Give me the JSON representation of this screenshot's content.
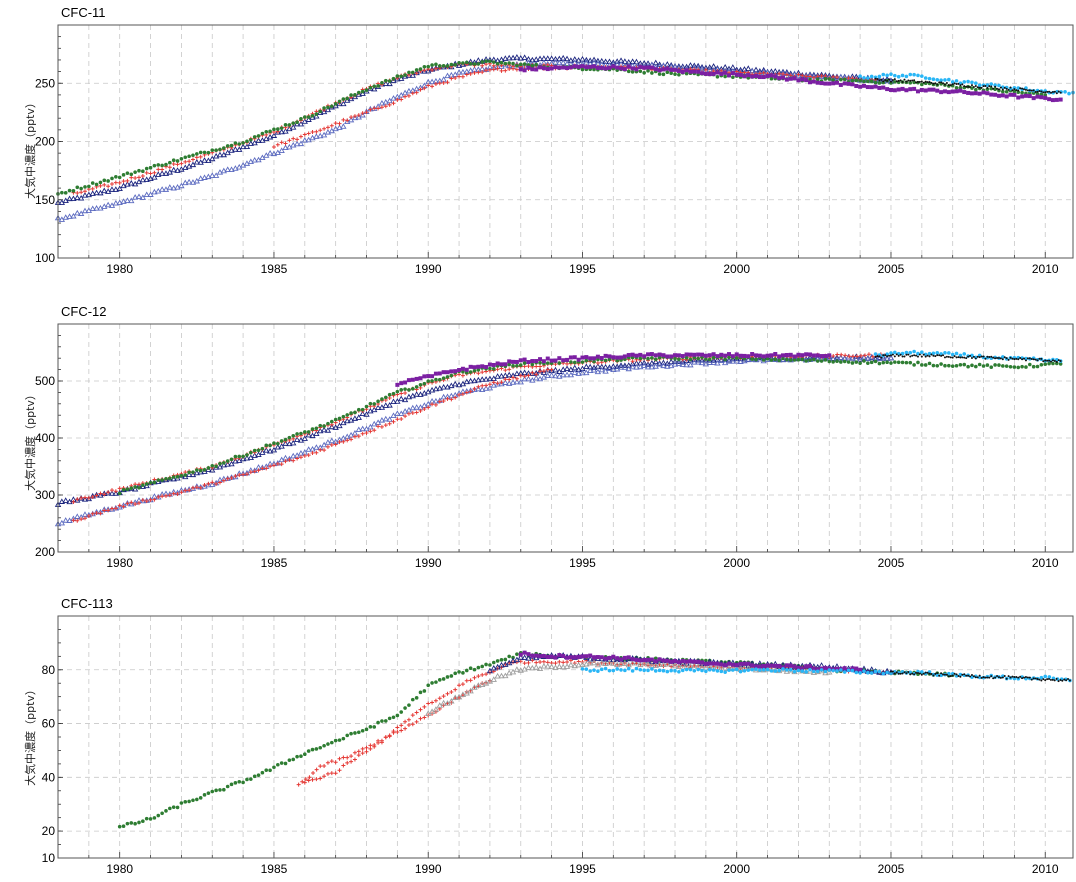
{
  "y_axis_label": "大気中濃度（pptv）",
  "chart_data": [
    {
      "type": "scatter",
      "title": "CFC-11",
      "ylabel": "大気中濃度（pptv）",
      "xlim": [
        1978,
        2010.9
      ],
      "ylim": [
        100,
        300
      ],
      "yticks": [
        100,
        150,
        200,
        250
      ],
      "xticks": [
        1980,
        1985,
        1990,
        1995,
        2000,
        2005,
        2010
      ],
      "grid": true,
      "series": [
        {
          "color": "#1a237e",
          "marker": "triangle",
          "x": [
            1978,
            1980,
            1983,
            1985,
            1987,
            1988,
            1989,
            1990,
            1991,
            1992,
            1993,
            1995,
            1997,
            2000,
            2003,
            2005
          ],
          "y": [
            147,
            160,
            185,
            205,
            230,
            243,
            253,
            261,
            266,
            270,
            271,
            270,
            267,
            262,
            256,
            252
          ]
        },
        {
          "color": "#5c6bc0",
          "marker": "triangle",
          "x": [
            1978,
            1980,
            1983,
            1985,
            1987,
            1988,
            1989,
            1990,
            1991,
            1992,
            1993,
            1995,
            1997,
            2000,
            2003,
            2005
          ],
          "y": [
            133,
            147,
            170,
            190,
            210,
            225,
            238,
            250,
            258,
            263,
            266,
            267,
            265,
            260,
            255,
            251
          ]
        },
        {
          "color": "#e53935",
          "marker": "cross",
          "x": [
            1978.5,
            1980,
            1983,
            1985,
            1987,
            1988,
            1989,
            1990,
            1991,
            1992,
            1993,
            1995,
            1997,
            2000,
            2003,
            2004.5
          ],
          "y": [
            155,
            165,
            190,
            208,
            233,
            245,
            255,
            262,
            266,
            266,
            265,
            264,
            263,
            259,
            255,
            253
          ]
        },
        {
          "color": "#e53935",
          "marker": "cross",
          "x": [
            1985,
            1986,
            1987,
            1988,
            1989,
            1990,
            1991,
            1992,
            1993,
            1995,
            1997
          ],
          "y": [
            196,
            205,
            215,
            225,
            235,
            247,
            255,
            261,
            263,
            264,
            263
          ]
        },
        {
          "color": "#2e7d32",
          "marker": "circle",
          "x": [
            1978,
            1980,
            1982,
            1984,
            1986,
            1988,
            1990,
            1992,
            1994,
            1996,
            1998,
            2000,
            2002,
            2004,
            2006,
            2008,
            2010
          ],
          "y": [
            155,
            170,
            185,
            200,
            220,
            245,
            265,
            268,
            264,
            262,
            258,
            256,
            253,
            252,
            250,
            245,
            240
          ]
        },
        {
          "color": "#7b1fa2",
          "marker": "square",
          "x": [
            1993,
            1995,
            1997,
            1999,
            2001,
            2003,
            2005,
            2007,
            2009,
            2010.5
          ],
          "y": [
            262,
            264,
            263,
            259,
            256,
            250,
            245,
            243,
            239,
            236
          ]
        },
        {
          "color": "#29b6f6",
          "marker": "circle",
          "x": [
            2004,
            2005,
            2006,
            2007,
            2008,
            2009,
            2010,
            2010.9
          ],
          "y": [
            255,
            257,
            256,
            252,
            249,
            246,
            243,
            242
          ]
        },
        {
          "color": "#111111",
          "marker": "point",
          "x": [
            2004.5,
            2005.5,
            2006.5,
            2007.5,
            2008.5,
            2009.5,
            2010.5
          ],
          "y": [
            253,
            252,
            250,
            248,
            246,
            244,
            242
          ]
        }
      ]
    },
    {
      "type": "scatter",
      "title": "CFC-12",
      "ylabel": "大気中濃度（pptv）",
      "xlim": [
        1978,
        2010.9
      ],
      "ylim": [
        200,
        600
      ],
      "yticks": [
        200,
        300,
        400,
        500
      ],
      "xticks": [
        1980,
        1985,
        1990,
        1995,
        2000,
        2005,
        2010
      ],
      "grid": true,
      "series": [
        {
          "color": "#1a237e",
          "marker": "triangle",
          "x": [
            1978,
            1980,
            1983,
            1985,
            1987,
            1989,
            1990,
            1991,
            1993,
            1995,
            1997,
            2000,
            2003,
            2005
          ],
          "y": [
            285,
            305,
            345,
            380,
            420,
            465,
            480,
            495,
            512,
            522,
            530,
            538,
            540,
            540
          ]
        },
        {
          "color": "#5c6bc0",
          "marker": "triangle",
          "x": [
            1978,
            1980,
            1983,
            1985,
            1987,
            1989,
            1990,
            1991,
            1993,
            1995,
            1997,
            2000,
            2003,
            2005
          ],
          "y": [
            250,
            280,
            320,
            355,
            395,
            440,
            460,
            478,
            500,
            515,
            525,
            535,
            539,
            540
          ]
        },
        {
          "color": "#e53935",
          "marker": "cross",
          "x": [
            1978.5,
            1980,
            1983,
            1985,
            1987,
            1989,
            1990,
            1991,
            1993,
            1995,
            1997,
            2000,
            2003,
            2004.8
          ],
          "y": [
            290,
            310,
            350,
            388,
            428,
            475,
            495,
            510,
            525,
            532,
            538,
            542,
            544,
            545
          ]
        },
        {
          "color": "#e53935",
          "marker": "cross",
          "x": [
            1978.5,
            1980,
            1982,
            1984,
            1986,
            1988,
            1990,
            1992,
            1994
          ],
          "y": [
            255,
            280,
            305,
            335,
            368,
            410,
            455,
            495,
            520
          ]
        },
        {
          "color": "#2e7d32",
          "marker": "circle",
          "x": [
            1980,
            1983,
            1985,
            1987,
            1989,
            1991,
            1993,
            1995,
            1997,
            2000,
            2003,
            2005,
            2007,
            2009,
            2010.5
          ],
          "y": [
            305,
            350,
            390,
            430,
            480,
            515,
            530,
            535,
            540,
            540,
            535,
            532,
            528,
            525,
            530
          ]
        },
        {
          "color": "#7b1fa2",
          "marker": "square",
          "x": [
            1989,
            1991,
            1993,
            1995,
            1997,
            1999,
            2001,
            2003
          ],
          "y": [
            495,
            520,
            535,
            540,
            545,
            545,
            545,
            545
          ]
        },
        {
          "color": "#29b6f6",
          "marker": "circle",
          "x": [
            2004.5,
            2005.5,
            2006.5,
            2007.5,
            2008.5,
            2009.5,
            2010.5
          ],
          "y": [
            545,
            550,
            548,
            545,
            540,
            538,
            535
          ]
        },
        {
          "color": "#111111",
          "marker": "point",
          "x": [
            2004.5,
            2005.5,
            2006.5,
            2007.5,
            2008.5,
            2009.5,
            2010.5
          ],
          "y": [
            543,
            545,
            544,
            542,
            540,
            538,
            535
          ]
        }
      ]
    },
    {
      "type": "scatter",
      "title": "CFC-113",
      "ylabel": "大気中濃度（pptv）",
      "xlim": [
        1978,
        2010.9
      ],
      "ylim": [
        10,
        100
      ],
      "yticks": [
        10,
        20,
        40,
        60,
        80
      ],
      "xticks": [
        1980,
        1985,
        1990,
        1995,
        2000,
        2005,
        2010
      ],
      "grid": true,
      "series": [
        {
          "color": "#2e7d32",
          "marker": "circle",
          "x": [
            1980,
            1981,
            1982,
            1984,
            1985,
            1986,
            1988,
            1989,
            1990,
            1991,
            1992,
            1993,
            1994,
            1995,
            1997,
            1999,
            2001,
            2003,
            2005,
            2007
          ],
          "y": [
            21.5,
            24.5,
            30,
            38.5,
            43.5,
            49,
            58,
            63,
            74,
            79,
            82,
            86,
            85,
            85,
            84,
            83,
            82,
            80,
            79,
            78
          ]
        },
        {
          "color": "#e53935",
          "marker": "cross",
          "x": [
            1985.8,
            1986.5,
            1987,
            1987.5,
            1988,
            1988.5,
            1989,
            1989.5,
            1990,
            1990.5,
            1991,
            1991.5,
            1992,
            1992.5,
            1993,
            1994,
            1995,
            1997,
            2000,
            2003,
            2005
          ],
          "y": [
            37,
            44,
            46,
            48,
            51,
            54,
            58,
            63,
            67,
            70,
            74,
            77,
            79,
            82,
            83,
            83,
            83,
            82,
            81,
            80,
            79
          ]
        },
        {
          "color": "#e53935",
          "marker": "cross",
          "x": [
            1986,
            1987,
            1988,
            1989,
            1990,
            1991,
            1992
          ],
          "y": [
            38,
            42,
            50,
            57,
            63,
            70,
            76
          ]
        },
        {
          "color": "#1a237e",
          "marker": "triangle",
          "x": [
            1992,
            1993,
            1994,
            1995,
            1997,
            2000,
            2003,
            2005
          ],
          "y": [
            80,
            84,
            85,
            84.5,
            83.5,
            82,
            81,
            79
          ]
        },
        {
          "color": "#9e9e9e",
          "marker": "triangle",
          "x": [
            1990,
            1991,
            1992,
            1993,
            1995,
            1997,
            1999,
            2001,
            2003
          ],
          "y": [
            64,
            70,
            76,
            80,
            82,
            82,
            81,
            80,
            79
          ]
        },
        {
          "color": "#7b1fa2",
          "marker": "square",
          "x": [
            1993,
            1994,
            1995,
            1996,
            1998,
            2000,
            2002,
            2004
          ],
          "y": [
            86,
            85,
            85,
            84.5,
            83,
            82,
            81,
            80
          ]
        },
        {
          "color": "#29b6f6",
          "marker": "circle",
          "x": [
            1995,
            1997,
            1999,
            2001,
            2003,
            2005,
            2006,
            2007,
            2008,
            2009,
            2010,
            2010.8
          ],
          "y": [
            80,
            80,
            79.5,
            80,
            79.5,
            79,
            79,
            78,
            77.5,
            77,
            77,
            76
          ]
        },
        {
          "color": "#111111",
          "marker": "point",
          "x": [
            2005,
            2006,
            2007,
            2008,
            2009,
            2010,
            2010.8
          ],
          "y": [
            79,
            78.5,
            78,
            77.5,
            77,
            76.5,
            76
          ]
        }
      ]
    }
  ]
}
